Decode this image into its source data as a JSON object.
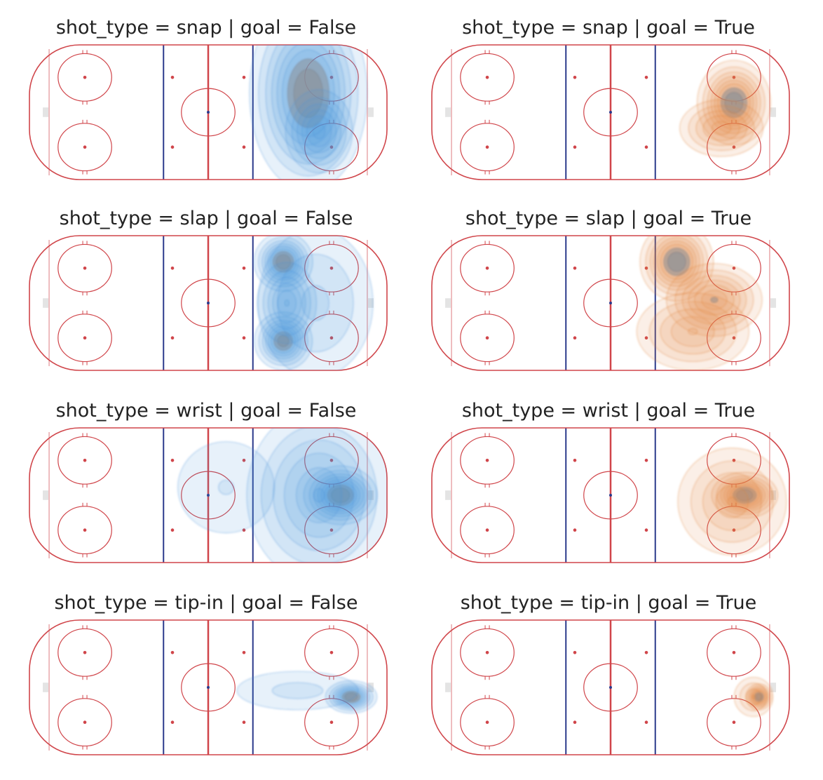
{
  "colors": {
    "board": "#d0454a",
    "center_line": "#d0454a",
    "blue_line": "#2b3a8c",
    "circle": "#d0454a",
    "goal_false": "#4a90d9",
    "goal_false_core": "#8a8f98",
    "goal_true": "#e0823a",
    "goal_true_core": "#8a8f98"
  },
  "chart_data": {
    "type": "kde-facet",
    "row_variable": "shot_type",
    "col_variable": "goal",
    "panels": [
      {
        "title": "shot_type = snap | goal = False",
        "shot_type": "snap",
        "goal": "False",
        "hotspots": [
          {
            "x": 56,
            "y": 12,
            "sx": 16,
            "sy": 30,
            "w": 1.0
          },
          {
            "x": 62,
            "y": -12,
            "sx": 10,
            "sy": 14,
            "w": 0.7
          }
        ]
      },
      {
        "title": "shot_type = snap | goal = True",
        "shot_type": "snap",
        "goal": "True",
        "hotspots": [
          {
            "x": 69,
            "y": 6,
            "sx": 10,
            "sy": 13,
            "w": 1.0
          },
          {
            "x": 62,
            "y": -10,
            "sx": 13,
            "sy": 10,
            "w": 0.6
          }
        ]
      },
      {
        "title": "shot_type = slap | goal = False",
        "shot_type": "slap",
        "goal": "False",
        "hotspots": [
          {
            "x": 42,
            "y": 26,
            "sx": 8,
            "sy": 9,
            "w": 1.0
          },
          {
            "x": 42,
            "y": -24,
            "sx": 8,
            "sy": 9,
            "w": 0.95
          },
          {
            "x": 44,
            "y": 0,
            "sx": 9,
            "sy": 14,
            "w": 0.65
          },
          {
            "x": 60,
            "y": 0,
            "sx": 22,
            "sy": 32,
            "w": 0.35
          }
        ]
      },
      {
        "title": "shot_type = slap | goal = True",
        "shot_type": "slap",
        "goal": "True",
        "hotspots": [
          {
            "x": 37,
            "y": 26,
            "sx": 10,
            "sy": 12,
            "w": 1.0
          },
          {
            "x": 58,
            "y": 2,
            "sx": 14,
            "sy": 12,
            "w": 0.75
          },
          {
            "x": 46,
            "y": -18,
            "sx": 18,
            "sy": 14,
            "w": 0.55
          }
        ]
      },
      {
        "title": "shot_type = wrist | goal = False",
        "shot_type": "wrist",
        "goal": "False",
        "hotspots": [
          {
            "x": 74,
            "y": 0,
            "sx": 10,
            "sy": 9,
            "w": 1.0
          },
          {
            "x": 62,
            "y": 0,
            "sx": 22,
            "sy": 30,
            "w": 0.65
          },
          {
            "x": 10,
            "y": 5,
            "sx": 30,
            "sy": 32,
            "w": 0.18
          }
        ]
      },
      {
        "title": "shot_type = wrist | goal = True",
        "shot_type": "wrist",
        "goal": "True",
        "hotspots": [
          {
            "x": 75,
            "y": 0,
            "sx": 9,
            "sy": 7,
            "w": 1.0
          },
          {
            "x": 68,
            "y": -4,
            "sx": 18,
            "sy": 20,
            "w": 0.5
          }
        ]
      },
      {
        "title": "shot_type = tip-in | goal = False",
        "shot_type": "tip-in",
        "goal": "False",
        "hotspots": [
          {
            "x": 80,
            "y": -6,
            "sx": 7,
            "sy": 5,
            "w": 1.0
          },
          {
            "x": 50,
            "y": -2,
            "sx": 28,
            "sy": 10,
            "w": 0.25
          }
        ]
      },
      {
        "title": "shot_type = tip-in | goal = True",
        "shot_type": "tip-in",
        "goal": "True",
        "hotspots": [
          {
            "x": 83,
            "y": -6,
            "sx": 3.5,
            "sy": 4,
            "w": 1.0
          },
          {
            "x": 80,
            "y": -6,
            "sx": 7,
            "sy": 8,
            "w": 0.4
          }
        ]
      }
    ]
  }
}
